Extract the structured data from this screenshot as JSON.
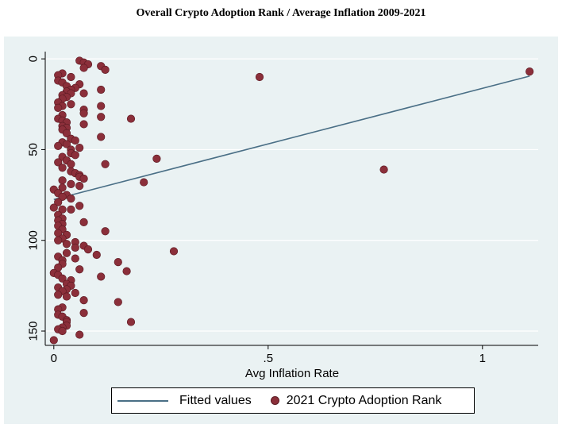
{
  "chart_data": {
    "type": "scatter",
    "title": "Overall Crypto Adoption Rank / Average Inflation 2009-2021",
    "xlabel": "Avg Inflation Rate",
    "ylabel": "",
    "xlim": [
      -0.02,
      1.13
    ],
    "ylim": [
      157,
      -4
    ],
    "y_reversed": true,
    "x_ticks": [
      0,
      0.5,
      1
    ],
    "x_tick_labels": [
      "0",
      ".5",
      "1"
    ],
    "y_ticks": [
      0,
      50,
      100,
      150
    ],
    "y_tick_labels": [
      "0",
      "50",
      "100",
      "150"
    ],
    "grid": "horizontal",
    "legend_position": "bottom",
    "colors": {
      "points": "#8b2f3a",
      "fit_line": "#4a6f86",
      "plot_background": "#eaf2f3",
      "outer_background": "#eaf2f3"
    },
    "series": [
      {
        "name": "2021 Crypto Adoption Rank",
        "kind": "scatter",
        "points": [
          [
            0.06,
            1
          ],
          [
            0.07,
            2
          ],
          [
            0.08,
            3
          ],
          [
            0.11,
            4
          ],
          [
            0.12,
            6
          ],
          [
            0.07,
            5
          ],
          [
            1.11,
            7
          ],
          [
            0.02,
            8
          ],
          [
            0.01,
            9
          ],
          [
            0.04,
            10
          ],
          [
            0.48,
            10
          ],
          [
            0.01,
            12
          ],
          [
            0.02,
            13
          ],
          [
            0.06,
            14
          ],
          [
            0.03,
            15
          ],
          [
            0.05,
            16
          ],
          [
            0.04,
            17
          ],
          [
            0.11,
            17
          ],
          [
            0.03,
            18
          ],
          [
            0.04,
            19
          ],
          [
            0.07,
            19
          ],
          [
            0.02,
            20
          ],
          [
            0.03,
            21
          ],
          [
            0.02,
            22
          ],
          [
            0.01,
            24
          ],
          [
            0.04,
            25
          ],
          [
            0.11,
            26
          ],
          [
            0.02,
            26
          ],
          [
            0.01,
            27
          ],
          [
            0.07,
            28
          ],
          [
            0.07,
            30
          ],
          [
            0.02,
            31
          ],
          [
            0.11,
            32
          ],
          [
            0.18,
            33
          ],
          [
            0.01,
            33
          ],
          [
            0.02,
            34
          ],
          [
            0.03,
            35
          ],
          [
            0.07,
            36
          ],
          [
            0.02,
            37
          ],
          [
            0.03,
            38
          ],
          [
            0.02,
            39
          ],
          [
            0.03,
            41
          ],
          [
            0.11,
            43
          ],
          [
            0.04,
            44
          ],
          [
            0.05,
            45
          ],
          [
            0.02,
            46
          ],
          [
            0.03,
            47
          ],
          [
            0.01,
            48
          ],
          [
            0.06,
            49
          ],
          [
            0.04,
            50
          ],
          [
            0.04,
            52
          ],
          [
            0.05,
            53
          ],
          [
            0.02,
            54
          ],
          [
            0.24,
            55
          ],
          [
            0.03,
            56
          ],
          [
            0.01,
            57
          ],
          [
            0.04,
            58
          ],
          [
            0.12,
            58
          ],
          [
            0.02,
            60
          ],
          [
            0.77,
            61
          ],
          [
            0.04,
            62
          ],
          [
            0.05,
            63
          ],
          [
            0.06,
            64
          ],
          [
            0.06,
            65
          ],
          [
            0.07,
            66
          ],
          [
            0.02,
            67
          ],
          [
            0.21,
            68
          ],
          [
            0.04,
            69
          ],
          [
            0.06,
            70
          ],
          [
            0.02,
            71
          ],
          [
            0.0,
            72
          ],
          [
            0.01,
            74
          ],
          [
            0.03,
            75
          ],
          [
            0.02,
            76
          ],
          [
            0.04,
            77
          ],
          [
            0.01,
            79
          ],
          [
            0.06,
            81
          ],
          [
            0.0,
            82
          ],
          [
            0.02,
            83
          ],
          [
            0.04,
            83
          ],
          [
            0.01,
            86
          ],
          [
            0.02,
            88
          ],
          [
            0.01,
            89
          ],
          [
            0.07,
            90
          ],
          [
            0.02,
            91
          ],
          [
            0.01,
            92
          ],
          [
            0.02,
            94
          ],
          [
            0.12,
            95
          ],
          [
            0.01,
            96
          ],
          [
            0.03,
            97
          ],
          [
            0.02,
            99
          ],
          [
            0.01,
            100
          ],
          [
            0.05,
            101
          ],
          [
            0.03,
            102
          ],
          [
            0.07,
            103
          ],
          [
            0.05,
            104
          ],
          [
            0.08,
            105
          ],
          [
            0.28,
            106
          ],
          [
            0.03,
            107
          ],
          [
            0.1,
            108
          ],
          [
            0.01,
            109
          ],
          [
            0.05,
            110
          ],
          [
            0.02,
            111
          ],
          [
            0.15,
            112
          ],
          [
            0.02,
            113
          ],
          [
            0.01,
            115
          ],
          [
            0.06,
            116
          ],
          [
            0.17,
            117
          ],
          [
            0.0,
            118
          ],
          [
            0.01,
            119
          ],
          [
            0.11,
            120
          ],
          [
            0.02,
            121
          ],
          [
            0.04,
            122
          ],
          [
            0.03,
            124
          ],
          [
            0.04,
            125
          ],
          [
            0.01,
            126
          ],
          [
            0.03,
            127
          ],
          [
            0.02,
            128
          ],
          [
            0.05,
            129
          ],
          [
            0.01,
            130
          ],
          [
            0.03,
            131
          ],
          [
            0.07,
            133
          ],
          [
            0.15,
            134
          ],
          [
            0.02,
            137
          ],
          [
            0.01,
            138
          ],
          [
            0.07,
            140
          ],
          [
            0.01,
            141
          ],
          [
            0.02,
            142
          ],
          [
            0.03,
            144
          ],
          [
            0.03,
            145
          ],
          [
            0.18,
            145
          ],
          [
            0.03,
            147
          ],
          [
            0.02,
            148
          ],
          [
            0.01,
            149
          ],
          [
            0.02,
            150
          ],
          [
            0.06,
            152
          ],
          [
            0.0,
            155
          ]
        ]
      },
      {
        "name": "Fitted values",
        "kind": "line",
        "points": [
          [
            0.0,
            77.5
          ],
          [
            1.11,
            9.5
          ]
        ]
      }
    ]
  },
  "legend": {
    "fitted_label": "Fitted values",
    "scatter_label": "2021 Crypto Adoption Rank"
  }
}
